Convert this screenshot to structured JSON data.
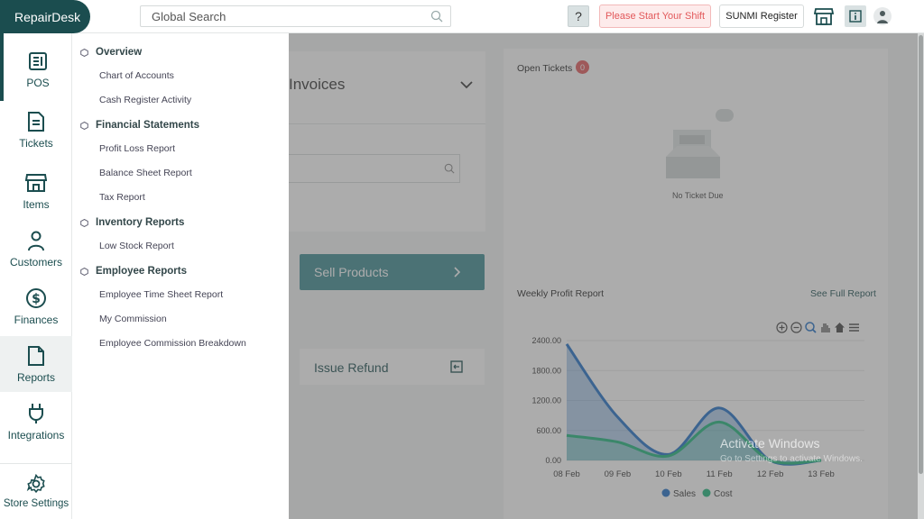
{
  "header": {
    "logo": "RepairDesk",
    "search_placeholder": "Global Search",
    "help_label": "?",
    "shift_label": "Please Start Your Shift",
    "register_label": "SUNMI Register"
  },
  "leftnav": {
    "items": [
      {
        "label": "POS",
        "icon": "pos-icon"
      },
      {
        "label": "Tickets",
        "icon": "ticket-icon"
      },
      {
        "label": "Items",
        "icon": "store-icon"
      },
      {
        "label": "Customers",
        "icon": "user-icon"
      },
      {
        "label": "Finances",
        "icon": "dollar-icon"
      },
      {
        "label": "Reports",
        "icon": "file-icon"
      },
      {
        "label": "Integrations",
        "icon": "plug-icon"
      },
      {
        "label": "Store Settings",
        "icon": "gear-icon"
      }
    ]
  },
  "reports_menu": {
    "groups": [
      {
        "title": "Overview",
        "links": [
          "Chart of Accounts",
          "Cash Register Activity"
        ]
      },
      {
        "title": "Financial Statements",
        "links": [
          "Profit Loss Report",
          "Balance Sheet Report",
          "Tax Report"
        ]
      },
      {
        "title": "Inventory Reports",
        "links": [
          "Low Stock Report"
        ]
      },
      {
        "title": "Employee Reports",
        "links": [
          "Employee Time Sheet Report",
          "My Commission",
          "Employee Commission Breakdown"
        ]
      }
    ]
  },
  "main": {
    "invoices_title": "Invoices",
    "sell_products": "Sell Products",
    "issue_refund": "Issue Refund",
    "open_tickets": {
      "title": "Open Tickets",
      "count": "0",
      "empty_text": "No Ticket Due"
    },
    "weekly_profit": {
      "title": "Weekly Profit Report",
      "see_full": "See Full Report"
    }
  },
  "chart_data": {
    "type": "area",
    "x": [
      "08 Feb",
      "09 Feb",
      "10 Feb",
      "11 Feb",
      "12 Feb",
      "13 Feb"
    ],
    "ylim": [
      0,
      2400
    ],
    "yticks": [
      "0.00",
      "600.00",
      "1200.00",
      "1800.00",
      "2400.00"
    ],
    "series": [
      {
        "name": "Sales",
        "color": "#1f6fc6",
        "values": [
          2330,
          870,
          120,
          1050,
          0,
          0
        ]
      },
      {
        "name": "Cost",
        "color": "#1db57a",
        "values": [
          500,
          370,
          90,
          770,
          0,
          0
        ]
      }
    ],
    "legend": "bottom",
    "grid": true
  },
  "watermark": {
    "line1": "Activate Windows",
    "line2": "Go to Settings to activate Windows."
  },
  "colors": {
    "brand": "#1b4d4f",
    "alert": "#e2585a",
    "sales": "#1f6fc6",
    "cost": "#1db57a"
  }
}
